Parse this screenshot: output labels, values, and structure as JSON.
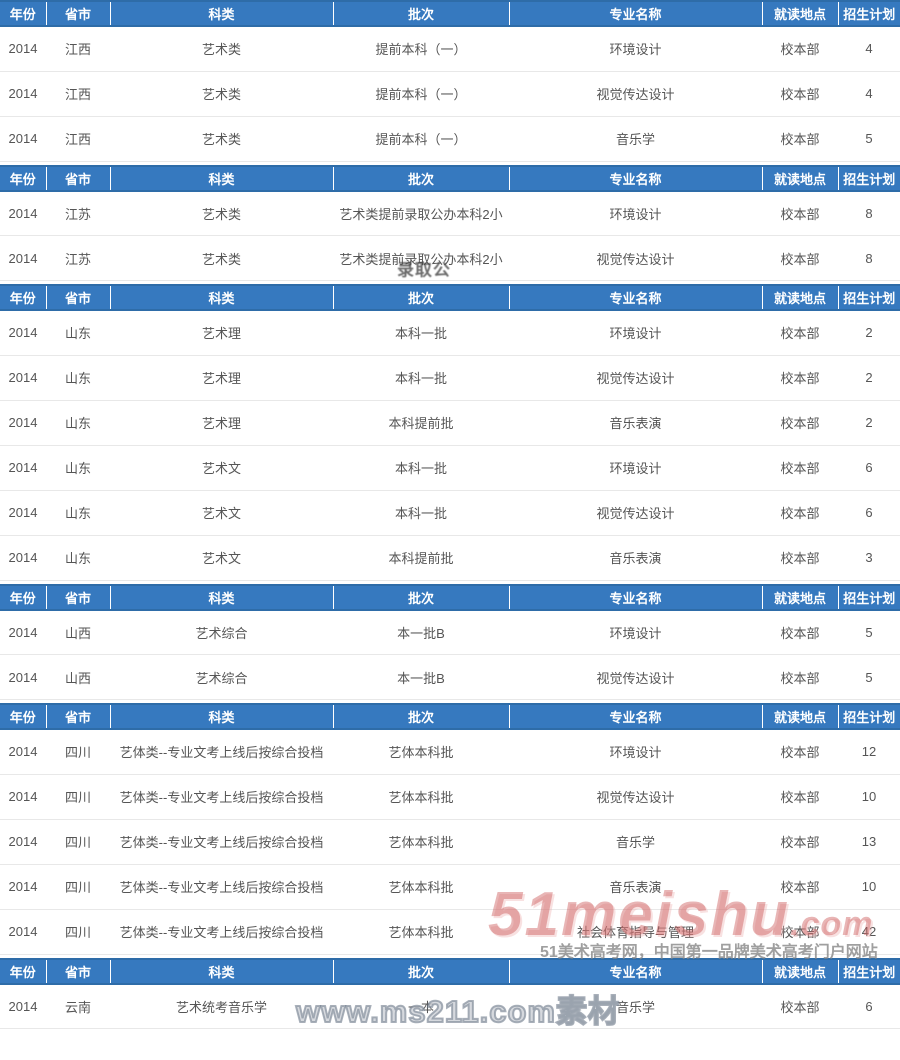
{
  "table": {
    "columns": [
      {
        "key": "year",
        "label": "年份"
      },
      {
        "key": "province",
        "label": "省市"
      },
      {
        "key": "category",
        "label": "科类"
      },
      {
        "key": "batch",
        "label": "批次"
      },
      {
        "key": "major",
        "label": "专业名称"
      },
      {
        "key": "location",
        "label": "就读地点"
      },
      {
        "key": "plan",
        "label": "招生计划"
      }
    ],
    "sections": [
      {
        "rows": [
          [
            "2014",
            "江西",
            "艺术类",
            "提前本科（一）",
            "环境设计",
            "校本部",
            "4"
          ],
          [
            "2014",
            "江西",
            "艺术类",
            "提前本科（一）",
            "视觉传达设计",
            "校本部",
            "4"
          ],
          [
            "2014",
            "江西",
            "艺术类",
            "提前本科（一）",
            "音乐学",
            "校本部",
            "5"
          ]
        ]
      },
      {
        "rows": [
          [
            "2014",
            "江苏",
            "艺术类",
            "艺术类提前录取公办本科2小",
            "环境设计",
            "校本部",
            "8"
          ],
          [
            "2014",
            "江苏",
            "艺术类",
            "艺术类提前录取公办本科2小",
            "视觉传达设计",
            "校本部",
            "8"
          ]
        ]
      },
      {
        "rows": [
          [
            "2014",
            "山东",
            "艺术理",
            "本科一批",
            "环境设计",
            "校本部",
            "2"
          ],
          [
            "2014",
            "山东",
            "艺术理",
            "本科一批",
            "视觉传达设计",
            "校本部",
            "2"
          ],
          [
            "2014",
            "山东",
            "艺术理",
            "本科提前批",
            "音乐表演",
            "校本部",
            "2"
          ],
          [
            "2014",
            "山东",
            "艺术文",
            "本科一批",
            "环境设计",
            "校本部",
            "6"
          ],
          [
            "2014",
            "山东",
            "艺术文",
            "本科一批",
            "视觉传达设计",
            "校本部",
            "6"
          ],
          [
            "2014",
            "山东",
            "艺术文",
            "本科提前批",
            "音乐表演",
            "校本部",
            "3"
          ]
        ]
      },
      {
        "rows": [
          [
            "2014",
            "山西",
            "艺术综合",
            "本一批B",
            "环境设计",
            "校本部",
            "5"
          ],
          [
            "2014",
            "山西",
            "艺术综合",
            "本一批B",
            "视觉传达设计",
            "校本部",
            "5"
          ]
        ]
      },
      {
        "rows": [
          [
            "2014",
            "四川",
            "艺体类--专业文考上线后按综合投档",
            "艺体本科批",
            "环境设计",
            "校本部",
            "12"
          ],
          [
            "2014",
            "四川",
            "艺体类--专业文考上线后按综合投档",
            "艺体本科批",
            "视觉传达设计",
            "校本部",
            "10"
          ],
          [
            "2014",
            "四川",
            "艺体类--专业文考上线后按综合投档",
            "艺体本科批",
            "音乐学",
            "校本部",
            "13"
          ],
          [
            "2014",
            "四川",
            "艺体类--专业文考上线后按综合投档",
            "艺体本科批",
            "音乐表演",
            "校本部",
            "10"
          ],
          [
            "2014",
            "四川",
            "艺体类--专业文考上线后按综合投档",
            "艺体本科批",
            "社会体育指导与管理",
            "校本部",
            "42"
          ]
        ]
      },
      {
        "rows": [
          [
            "2014",
            "云南",
            "艺术统考音乐学",
            "一本",
            "音乐学",
            "校本部",
            "6"
          ]
        ]
      }
    ]
  },
  "watermarks": {
    "site_logo": "51meishu",
    "site_logo_suffix": ".com",
    "site_caption": "51美术高考网，中国第一品牌美术高考门户网站",
    "ms211": "www.ms211.com素材",
    "fragment": "录取公"
  },
  "colors": {
    "header_bg": "#3679bf",
    "header_border": "#2e6ca8",
    "row_divider": "#e8e8e8",
    "body_text": "#555555",
    "watermark_pink": "rgba(205,90,90,0.45)"
  }
}
